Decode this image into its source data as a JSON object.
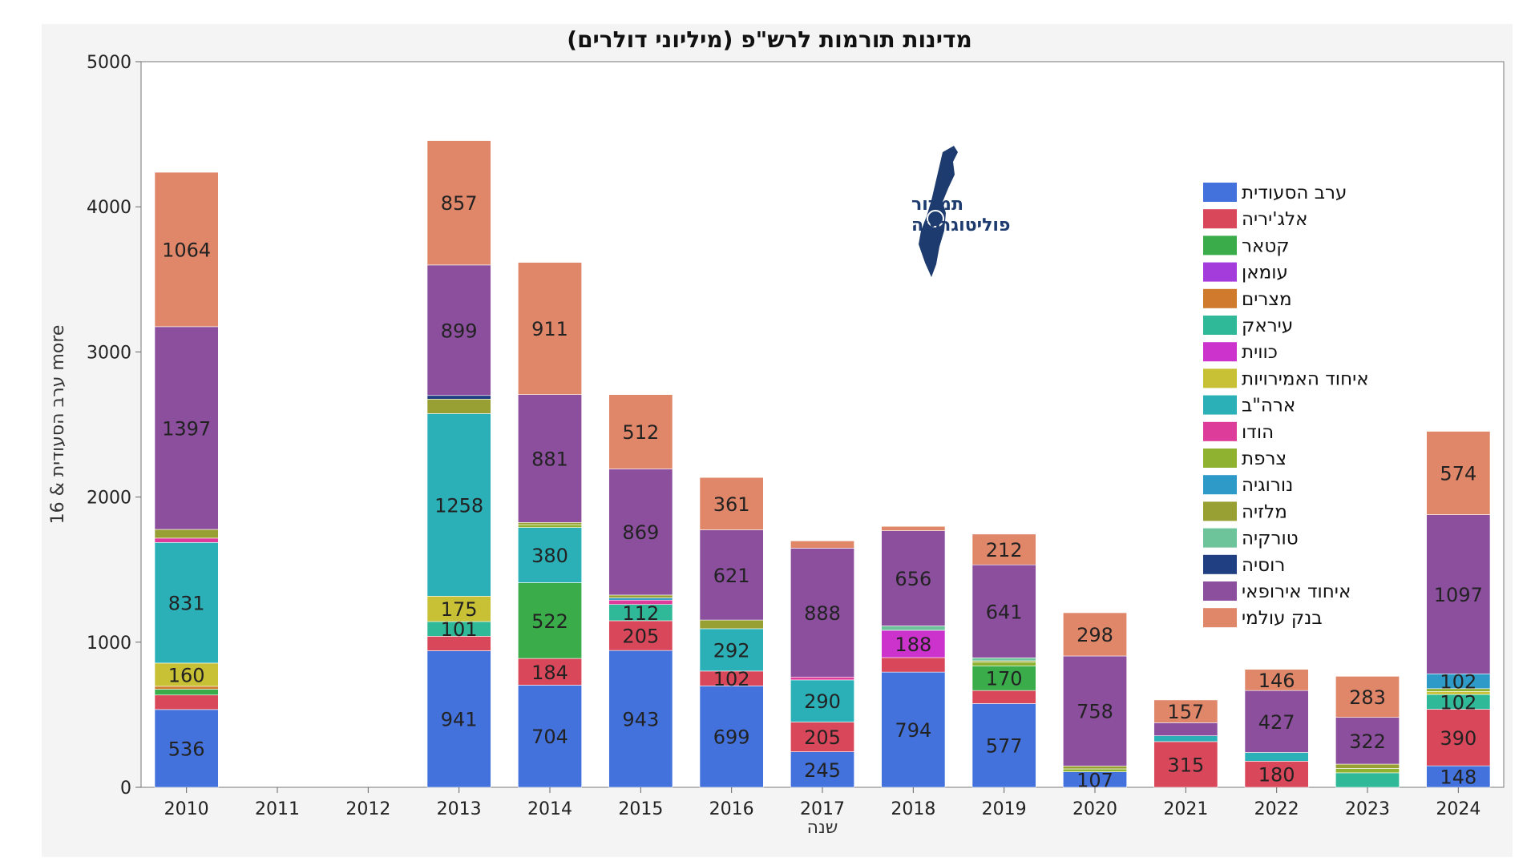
{
  "chart_data": {
    "type": "bar",
    "stacked": true,
    "title": "מדינות תורמות לרש\"פ (מיליוני דולרים)",
    "xlabel": "שנה",
    "ylabel": "ערב הסעודית & 16 more",
    "ylim": [
      0,
      5000
    ],
    "yticks": [
      "0",
      "1000",
      "2000",
      "3000",
      "4000",
      "5000"
    ],
    "categories": [
      "2010",
      "2011",
      "2012",
      "2013",
      "2014",
      "2015",
      "2016",
      "2017",
      "2018",
      "2019",
      "2020",
      "2021",
      "2022",
      "2023",
      "2024"
    ],
    "legend_position": "right",
    "series": [
      {
        "name": "ערב הסעודית",
        "color": "#4372DC",
        "values": [
          536,
          0,
          0,
          941,
          704,
          943,
          699,
          245,
          794,
          577,
          107,
          0,
          0,
          0,
          148
        ]
      },
      {
        "name": "אלג'יריה",
        "color": "#D9485A",
        "values": [
          100,
          0,
          0,
          100,
          184,
          205,
          102,
          205,
          100,
          90,
          0,
          315,
          180,
          0,
          390
        ]
      },
      {
        "name": "קטאר",
        "color": "#3AAD4A",
        "values": [
          40,
          0,
          0,
          0,
          522,
          0,
          0,
          0,
          0,
          170,
          0,
          0,
          0,
          0,
          0
        ]
      },
      {
        "name": "עומאן",
        "color": "#A43BDB",
        "values": [
          0,
          0,
          0,
          0,
          0,
          0,
          0,
          0,
          0,
          0,
          0,
          0,
          0,
          0,
          0
        ]
      },
      {
        "name": "מצרים",
        "color": "#D07A2E",
        "values": [
          20,
          0,
          0,
          0,
          0,
          0,
          0,
          0,
          0,
          0,
          0,
          0,
          0,
          0,
          0
        ]
      },
      {
        "name": "עיראק",
        "color": "#2FB999",
        "values": [
          0,
          0,
          0,
          101,
          0,
          112,
          0,
          0,
          0,
          0,
          0,
          0,
          0,
          100,
          102
        ]
      },
      {
        "name": "כווית",
        "color": "#CC33CC",
        "values": [
          0,
          0,
          0,
          0,
          0,
          0,
          0,
          0,
          188,
          0,
          0,
          0,
          0,
          0,
          0
        ]
      },
      {
        "name": "איחוד האמירויות",
        "color": "#C8C035",
        "values": [
          160,
          0,
          0,
          175,
          0,
          0,
          0,
          0,
          0,
          0,
          0,
          0,
          0,
          0,
          20
        ]
      },
      {
        "name": "ארה\"ב",
        "color": "#2BB0B8",
        "values": [
          831,
          0,
          0,
          1258,
          380,
          0,
          292,
          290,
          0,
          0,
          0,
          40,
          60,
          0,
          0
        ]
      },
      {
        "name": "הודו",
        "color": "#DD3C9A",
        "values": [
          30,
          0,
          0,
          0,
          0,
          30,
          0,
          20,
          0,
          0,
          0,
          0,
          0,
          0,
          0
        ]
      },
      {
        "name": "צרפת",
        "color": "#8FB330",
        "values": [
          0,
          0,
          0,
          0,
          20,
          0,
          0,
          0,
          0,
          25,
          20,
          0,
          0,
          30,
          20
        ]
      },
      {
        "name": "נורוגיה",
        "color": "#2E9AC7",
        "values": [
          0,
          0,
          0,
          0,
          0,
          15,
          0,
          0,
          0,
          0,
          0,
          0,
          0,
          0,
          102
        ]
      },
      {
        "name": "מלזיה",
        "color": "#98A034",
        "values": [
          60,
          0,
          0,
          100,
          15,
          20,
          60,
          0,
          0,
          10,
          20,
          0,
          0,
          30,
          0
        ]
      },
      {
        "name": "טורקיה",
        "color": "#6EC49A",
        "values": [
          0,
          0,
          0,
          0,
          0,
          0,
          0,
          0,
          30,
          20,
          0,
          0,
          0,
          0,
          0
        ]
      },
      {
        "name": "רוסיה",
        "color": "#1F3F82",
        "values": [
          0,
          0,
          0,
          25,
          0,
          0,
          0,
          0,
          0,
          0,
          0,
          0,
          0,
          0,
          0
        ]
      },
      {
        "name": "איחוד אירופאי",
        "color": "#8B4F9E",
        "values": [
          1397,
          0,
          0,
          899,
          881,
          869,
          621,
          888,
          656,
          641,
          758,
          90,
          427,
          322,
          1097
        ]
      },
      {
        "name": "בנק עולמי",
        "color": "#E0876A",
        "values": [
          1064,
          0,
          0,
          857,
          911,
          512,
          361,
          50,
          30,
          212,
          298,
          157,
          146,
          283,
          574
        ]
      }
    ],
    "data_labels": [
      {
        "category": "2010",
        "series": "ערב הסעודית",
        "text": "536"
      },
      {
        "category": "2010",
        "series": "איחוד האמירויות",
        "text": "160"
      },
      {
        "category": "2010",
        "series": "ארה\"ב",
        "text": "831"
      },
      {
        "category": "2010",
        "series": "איחוד אירופאי",
        "text": "1397"
      },
      {
        "category": "2010",
        "series": "בנק עולמי",
        "text": "1064"
      },
      {
        "category": "2013",
        "series": "ערב הסעודית",
        "text": "941"
      },
      {
        "category": "2013",
        "series": "עיראק",
        "text": "101"
      },
      {
        "category": "2013",
        "series": "איחוד האמירויות",
        "text": "175"
      },
      {
        "category": "2013",
        "series": "ארה\"ב",
        "text": "1258"
      },
      {
        "category": "2013",
        "series": "איחוד אירופאי",
        "text": "899"
      },
      {
        "category": "2013",
        "series": "בנק עולמי",
        "text": "857"
      },
      {
        "category": "2014",
        "series": "ערב הסעודית",
        "text": "704"
      },
      {
        "category": "2014",
        "series": "אלג'יריה",
        "text": "184"
      },
      {
        "category": "2014",
        "series": "קטאר",
        "text": "522"
      },
      {
        "category": "2014",
        "series": "ארה\"ב",
        "text": "380"
      },
      {
        "category": "2014",
        "series": "איחוד אירופאי",
        "text": "881"
      },
      {
        "category": "2014",
        "series": "בנק עולמי",
        "text": "911"
      },
      {
        "category": "2015",
        "series": "ערב הסעודית",
        "text": "943"
      },
      {
        "category": "2015",
        "series": "אלג'יריה",
        "text": "205"
      },
      {
        "category": "2015",
        "series": "עיראק",
        "text": "112"
      },
      {
        "category": "2015",
        "series": "איחוד אירופאי",
        "text": "869"
      },
      {
        "category": "2015",
        "series": "בנק עולמי",
        "text": "512"
      },
      {
        "category": "2016",
        "series": "ערב הסעודית",
        "text": "699"
      },
      {
        "category": "2016",
        "series": "אלג'יריה",
        "text": "102"
      },
      {
        "category": "2016",
        "series": "ארה\"ב",
        "text": "292"
      },
      {
        "category": "2016",
        "series": "איחוד אירופאי",
        "text": "621"
      },
      {
        "category": "2016",
        "series": "בנק עולמי",
        "text": "361"
      },
      {
        "category": "2017",
        "series": "ערב הסעודית",
        "text": "245"
      },
      {
        "category": "2017",
        "series": "אלג'יריה",
        "text": "205"
      },
      {
        "category": "2017",
        "series": "ארה\"ב",
        "text": "290"
      },
      {
        "category": "2017",
        "series": "איחוד אירופאי",
        "text": "888"
      },
      {
        "category": "2018",
        "series": "ערב הסעודית",
        "text": "794"
      },
      {
        "category": "2018",
        "series": "כווית",
        "text": "188"
      },
      {
        "category": "2018",
        "series": "איחוד אירופאי",
        "text": "656"
      },
      {
        "category": "2019",
        "series": "ערב הסעודית",
        "text": "577"
      },
      {
        "category": "2019",
        "series": "קטאר",
        "text": "170"
      },
      {
        "category": "2019",
        "series": "איחוד אירופאי",
        "text": "641"
      },
      {
        "category": "2019",
        "series": "בנק עולמי",
        "text": "212"
      },
      {
        "category": "2020",
        "series": "ערב הסעודית",
        "text": "107"
      },
      {
        "category": "2020",
        "series": "איחוד אירופאי",
        "text": "758"
      },
      {
        "category": "2020",
        "series": "בנק עולמי",
        "text": "298"
      },
      {
        "category": "2021",
        "series": "אלג'יריה",
        "text": "315"
      },
      {
        "category": "2021",
        "series": "בנק עולמי",
        "text": "157"
      },
      {
        "category": "2022",
        "series": "אלג'יריה",
        "text": "180"
      },
      {
        "category": "2022",
        "series": "איחוד אירופאי",
        "text": "427"
      },
      {
        "category": "2022",
        "series": "בנק עולמי",
        "text": "146"
      },
      {
        "category": "2023",
        "series": "איחוד אירופאי",
        "text": "322"
      },
      {
        "category": "2023",
        "series": "בנק עולמי",
        "text": "283"
      },
      {
        "category": "2024",
        "series": "ערב הסעודית",
        "text": "148"
      },
      {
        "category": "2024",
        "series": "אלג'יריה",
        "text": "390"
      },
      {
        "category": "2024",
        "series": "עיראק",
        "text": "102"
      },
      {
        "category": "2024",
        "series": "נורוגיה",
        "text": "102"
      },
      {
        "category": "2024",
        "series": "איחוד אירופאי",
        "text": "1097"
      },
      {
        "category": "2024",
        "series": "בנק עולמי",
        "text": "574"
      }
    ]
  },
  "logo": {
    "line1": "תמרור",
    "line2": "פוליטוגרפיה",
    "icon": "israel-map-icon",
    "color": "#1d3b6e"
  }
}
